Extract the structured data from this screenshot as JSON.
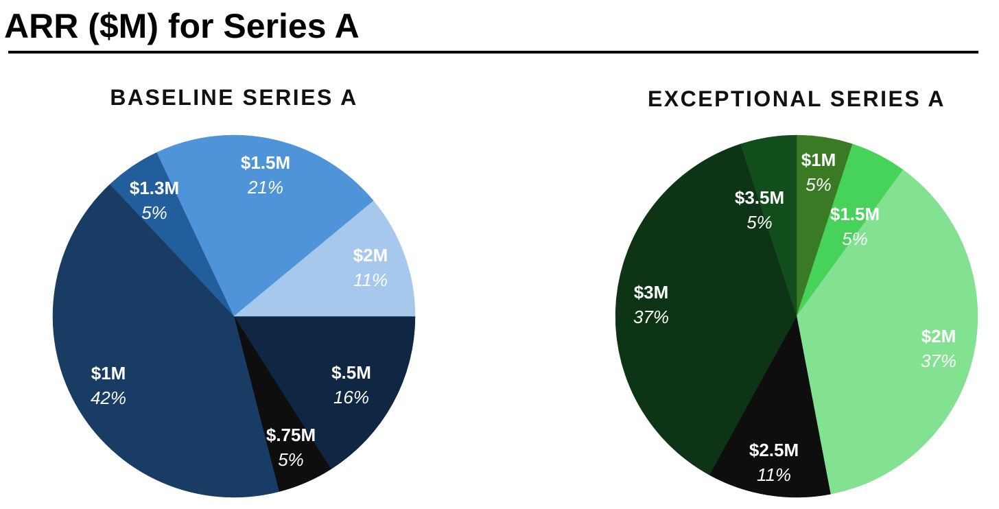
{
  "title": "ARR ($M) for Series A",
  "chart_data": [
    {
      "type": "pie",
      "title": "BASELINE SERIES A",
      "start": "3 o'clock, clockwise",
      "slices": [
        {
          "label": "$.5M",
          "pct_label": "16%",
          "value": 16,
          "color": "#0f2742"
        },
        {
          "label": "$.75M",
          "pct_label": "5%",
          "value": 5,
          "color": "#0e0e0e"
        },
        {
          "label": "$1M",
          "pct_label": "42%",
          "value": 42,
          "color": "#183c63"
        },
        {
          "label": "$1.3M",
          "pct_label": "5%",
          "value": 5,
          "color": "#235e9c"
        },
        {
          "label": "$1.5M",
          "pct_label": "21%",
          "value": 21,
          "color": "#4f94d8"
        },
        {
          "label": "$2M",
          "pct_label": "11%",
          "value": 11,
          "color": "#a5c8ec"
        }
      ]
    },
    {
      "type": "pie",
      "title": "EXCEPTIONAL SERIES A",
      "start": "12 o'clock, clockwise",
      "slices": [
        {
          "label": "$1M",
          "pct_label": "5%",
          "value": 5,
          "color": "#3a7a24"
        },
        {
          "label": "$1.5M",
          "pct_label": "5%",
          "value": 5,
          "color": "#47d25a"
        },
        {
          "label": "$2M",
          "pct_label": "37%",
          "value": 37,
          "color": "#83e192"
        },
        {
          "label": "$2.5M",
          "pct_label": "11%",
          "value": 11,
          "color": "#0e0e0e"
        },
        {
          "label": "$3M",
          "pct_label": "37%",
          "value": 37,
          "color": "#0d3414"
        },
        {
          "label": "$3.5M",
          "pct_label": "5%",
          "value": 5,
          "color": "#124e1c"
        }
      ]
    }
  ]
}
